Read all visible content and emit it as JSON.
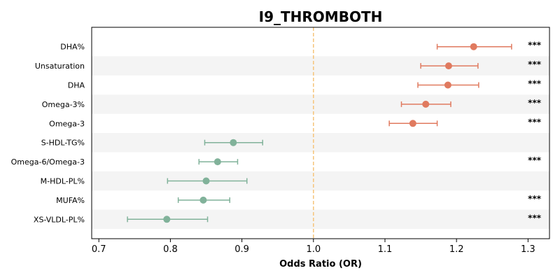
{
  "chart_data": {
    "type": "forest",
    "title": "I9_THROMBOTH",
    "xlabel": "Odds Ratio (OR)",
    "xlim": [
      0.69,
      1.33
    ],
    "xticks": [
      0.7,
      0.8,
      0.9,
      1.0,
      1.1,
      1.2,
      1.3
    ],
    "xtick_labels": [
      "0.7",
      "0.8",
      "0.9",
      "1.0",
      "1.1",
      "1.2",
      "1.3"
    ],
    "reference_line": 1.0,
    "colors": {
      "positive": "#e07a5f",
      "negative": "#81b29a",
      "reference": "#f6c47a",
      "stripe": "#f4f4f4"
    },
    "rows": [
      {
        "label": "DHA%",
        "or": 1.224,
        "lo": 1.173,
        "hi": 1.277,
        "sig": "***"
      },
      {
        "label": "Unsaturation",
        "or": 1.189,
        "lo": 1.15,
        "hi": 1.23,
        "sig": "***"
      },
      {
        "label": "DHA",
        "or": 1.188,
        "lo": 1.146,
        "hi": 1.231,
        "sig": "***"
      },
      {
        "label": "Omega-3%",
        "or": 1.157,
        "lo": 1.123,
        "hi": 1.192,
        "sig": "***"
      },
      {
        "label": "Omega-3",
        "or": 1.139,
        "lo": 1.106,
        "hi": 1.173,
        "sig": "***"
      },
      {
        "label": "S-HDL-TG%",
        "or": 0.888,
        "lo": 0.848,
        "hi": 0.929,
        "sig": ""
      },
      {
        "label": "Omega-6/Omega-3",
        "or": 0.866,
        "lo": 0.84,
        "hi": 0.894,
        "sig": "***"
      },
      {
        "label": "M-HDL-PL%",
        "or": 0.85,
        "lo": 0.796,
        "hi": 0.907,
        "sig": ""
      },
      {
        "label": "MUFA%",
        "or": 0.846,
        "lo": 0.811,
        "hi": 0.883,
        "sig": "***"
      },
      {
        "label": "XS-VLDL-PL%",
        "or": 0.795,
        "lo": 0.74,
        "hi": 0.852,
        "sig": "***"
      }
    ]
  }
}
